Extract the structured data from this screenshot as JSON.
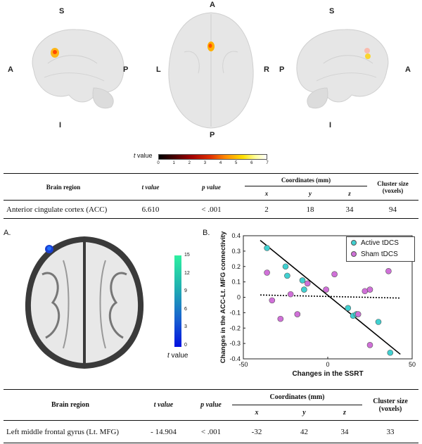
{
  "figure_top": {
    "views": [
      {
        "name": "left-sagittal",
        "labels": {
          "top": "S",
          "bottom": "I",
          "left": "A",
          "right": "P"
        }
      },
      {
        "name": "axial",
        "labels": {
          "top": "A",
          "bottom": "P",
          "left": "L",
          "right": "R"
        }
      },
      {
        "name": "right-sagittal",
        "labels": {
          "top": "S",
          "bottom": "I",
          "left": "P",
          "right": "A"
        }
      }
    ],
    "colorbar": {
      "label_italic": "t",
      "label_rest": " value",
      "ticks": [
        "0",
        "1",
        "2",
        "3",
        "4",
        "5",
        "6",
        "7"
      ]
    }
  },
  "table1": {
    "headers": {
      "region": "Brain region",
      "t": "t value",
      "p": "p value",
      "coords": "Coordinates (mm)",
      "x": "x",
      "y": "y",
      "z": "z",
      "cluster": "Cluster size (voxels)"
    },
    "row": {
      "region": "Anterior cingulate cortex (ACC)",
      "t": "6.610",
      "p": "< .001",
      "x": "2",
      "y": "18",
      "z": "34",
      "cluster": "94"
    }
  },
  "panel_a": {
    "label": "A.",
    "colorbar": {
      "ticks": [
        "15",
        "12",
        "9",
        "6",
        "3",
        "0"
      ],
      "label_italic": "t",
      "label_rest": " value"
    }
  },
  "panel_b": {
    "label": "B."
  },
  "chart_data": {
    "type": "scatter",
    "xlabel": "Changes in the SSRT",
    "ylabel": "Changes in the ACC-Lt. MFG connectivity",
    "xlim": [
      -50,
      50
    ],
    "ylim": [
      -0.4,
      0.4
    ],
    "xticks": [
      -50,
      0,
      50
    ],
    "yticks": [
      0.4,
      0.3,
      0.2,
      0.1,
      0,
      -0.1,
      -0.2,
      -0.3,
      -0.4
    ],
    "legend_position": "top-right",
    "series": [
      {
        "name": "Active tDCS",
        "color": "#40d0d0",
        "fit": {
          "style": "solid",
          "x": [
            -40,
            43
          ],
          "y": [
            0.37,
            -0.37
          ]
        },
        "points": [
          {
            "x": -36,
            "y": 0.32
          },
          {
            "x": -25,
            "y": 0.2
          },
          {
            "x": -24,
            "y": 0.14
          },
          {
            "x": -15,
            "y": 0.11
          },
          {
            "x": -14,
            "y": 0.05
          },
          {
            "x": 12,
            "y": -0.07
          },
          {
            "x": 15,
            "y": -0.12
          },
          {
            "x": 17,
            "y": -0.11
          },
          {
            "x": 30,
            "y": -0.16
          },
          {
            "x": 37,
            "y": -0.36
          }
        ]
      },
      {
        "name": "Sham tDCS",
        "color": "#d070d8",
        "fit": {
          "style": "dotted",
          "x": [
            -40,
            43
          ],
          "y": [
            0.015,
            -0.005
          ]
        },
        "points": [
          {
            "x": -36,
            "y": 0.16
          },
          {
            "x": -33,
            "y": -0.02
          },
          {
            "x": -28,
            "y": -0.14
          },
          {
            "x": -22,
            "y": 0.02
          },
          {
            "x": -18,
            "y": -0.11
          },
          {
            "x": -12,
            "y": 0.09
          },
          {
            "x": -1,
            "y": 0.05
          },
          {
            "x": 4,
            "y": 0.15
          },
          {
            "x": 18,
            "y": -0.11
          },
          {
            "x": 22,
            "y": 0.04
          },
          {
            "x": 25,
            "y": 0.05
          },
          {
            "x": 25,
            "y": -0.31
          },
          {
            "x": 36,
            "y": 0.17
          }
        ]
      }
    ]
  },
  "table2": {
    "headers": {
      "region": "Brain region",
      "t": "t value",
      "p": "p value",
      "coords": "Coordinates (mm)",
      "x": "x",
      "y": "y",
      "z": "z",
      "cluster": "Cluster size (voxels)"
    },
    "row": {
      "region": "Left middle frontal gyrus (Lt. MFG)",
      "t": "- 14.904",
      "p": "< .001",
      "x": "-32",
      "y": "42",
      "z": "34",
      "cluster": "33"
    }
  }
}
